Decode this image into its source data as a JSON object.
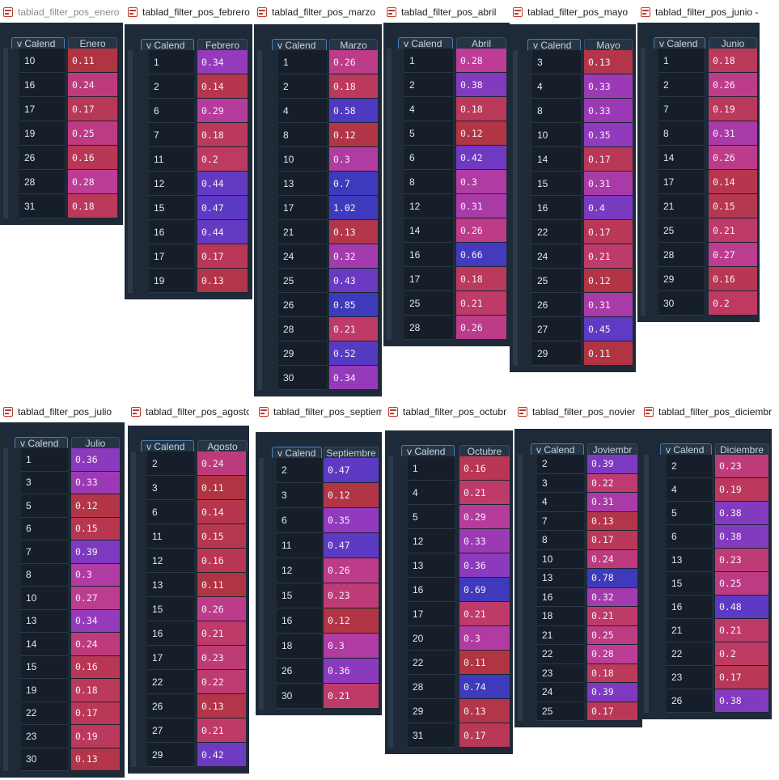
{
  "index_header": "Calend",
  "panels": [
    {
      "title": "tablad_filter_pos_enero",
      "header": "Enero",
      "rows": [
        [
          "10",
          "0.11"
        ],
        [
          "16",
          "0.24"
        ],
        [
          "17",
          "0.17"
        ],
        [
          "19",
          "0.25"
        ],
        [
          "26",
          "0.16"
        ],
        [
          "28",
          "0.28"
        ],
        [
          "31",
          "0.18"
        ]
      ]
    },
    {
      "title": "tablad_filter_pos_febrero",
      "header": "Febrero",
      "rows": [
        [
          "1",
          "0.34"
        ],
        [
          "2",
          "0.14"
        ],
        [
          "6",
          "0.29"
        ],
        [
          "7",
          "0.18"
        ],
        [
          "11",
          "0.2"
        ],
        [
          "12",
          "0.44"
        ],
        [
          "15",
          "0.47"
        ],
        [
          "16",
          "0.44"
        ],
        [
          "17",
          "0.17"
        ],
        [
          "19",
          "0.13"
        ]
      ]
    },
    {
      "title": "tablad_filter_pos_marzo",
      "header": "Marzo",
      "rows": [
        [
          "1",
          "0.26"
        ],
        [
          "2",
          "0.18"
        ],
        [
          "4",
          "0.58"
        ],
        [
          "8",
          "0.12"
        ],
        [
          "10",
          "0.3"
        ],
        [
          "13",
          "0.7"
        ],
        [
          "17",
          "1.02"
        ],
        [
          "21",
          "0.13"
        ],
        [
          "24",
          "0.32"
        ],
        [
          "25",
          "0.43"
        ],
        [
          "26",
          "0.85"
        ],
        [
          "28",
          "0.21"
        ],
        [
          "29",
          "0.52"
        ],
        [
          "30",
          "0.34"
        ]
      ]
    },
    {
      "title": "tablad_filter_pos_abril",
      "header": "Abril",
      "rows": [
        [
          "1",
          "0.28"
        ],
        [
          "2",
          "0.38"
        ],
        [
          "4",
          "0.18"
        ],
        [
          "5",
          "0.12"
        ],
        [
          "6",
          "0.42"
        ],
        [
          "8",
          "0.3"
        ],
        [
          "12",
          "0.31"
        ],
        [
          "14",
          "0.26"
        ],
        [
          "16",
          "0.66"
        ],
        [
          "17",
          "0.18"
        ],
        [
          "25",
          "0.21"
        ],
        [
          "28",
          "0.26"
        ]
      ]
    },
    {
      "title": "tablad_filter_pos_mayo",
      "header": "Mayo",
      "rows": [
        [
          "3",
          "0.13"
        ],
        [
          "4",
          "0.33"
        ],
        [
          "8",
          "0.33"
        ],
        [
          "10",
          "0.35"
        ],
        [
          "14",
          "0.17"
        ],
        [
          "15",
          "0.31"
        ],
        [
          "16",
          "0.4"
        ],
        [
          "22",
          "0.17"
        ],
        [
          "24",
          "0.21"
        ],
        [
          "25",
          "0.12"
        ],
        [
          "26",
          "0.31"
        ],
        [
          "27",
          "0.45"
        ],
        [
          "29",
          "0.11"
        ]
      ]
    },
    {
      "title": "tablad_filter_pos_junio -",
      "header": "Junio",
      "rows": [
        [
          "1",
          "0.18"
        ],
        [
          "2",
          "0.26"
        ],
        [
          "7",
          "0.19"
        ],
        [
          "8",
          "0.31"
        ],
        [
          "14",
          "0.26"
        ],
        [
          "17",
          "0.14"
        ],
        [
          "21",
          "0.15"
        ],
        [
          "25",
          "0.21"
        ],
        [
          "28",
          "0.27"
        ],
        [
          "29",
          "0.16"
        ],
        [
          "30",
          "0.2"
        ]
      ]
    },
    {
      "title": "tablad_filter_pos_julio",
      "header": "Julio",
      "rows": [
        [
          "1",
          "0.36"
        ],
        [
          "3",
          "0.33"
        ],
        [
          "5",
          "0.12"
        ],
        [
          "6",
          "0.15"
        ],
        [
          "7",
          "0.39"
        ],
        [
          "8",
          "0.3"
        ],
        [
          "10",
          "0.27"
        ],
        [
          "13",
          "0.34"
        ],
        [
          "14",
          "0.24"
        ],
        [
          "15",
          "0.16"
        ],
        [
          "19",
          "0.18"
        ],
        [
          "22",
          "0.17"
        ],
        [
          "23",
          "0.19"
        ],
        [
          "30",
          "0.13"
        ]
      ]
    },
    {
      "title": "tablad_filter_pos_agosto",
      "header": "Agosto",
      "rows": [
        [
          "2",
          "0.24"
        ],
        [
          "3",
          "0.11"
        ],
        [
          "6",
          "0.14"
        ],
        [
          "11",
          "0.15"
        ],
        [
          "12",
          "0.16"
        ],
        [
          "13",
          "0.11"
        ],
        [
          "15",
          "0.26"
        ],
        [
          "16",
          "0.21"
        ],
        [
          "17",
          "0.23"
        ],
        [
          "22",
          "0.22"
        ],
        [
          "26",
          "0.13"
        ],
        [
          "27",
          "0.21"
        ],
        [
          "29",
          "0.42"
        ]
      ]
    },
    {
      "title": "tablad_filter_pos_septiemb",
      "header": "Septiembre",
      "rows": [
        [
          "2",
          "0.47"
        ],
        [
          "3",
          "0.12"
        ],
        [
          "6",
          "0.35"
        ],
        [
          "11",
          "0.47"
        ],
        [
          "12",
          "0.26"
        ],
        [
          "15",
          "0.23"
        ],
        [
          "16",
          "0.12"
        ],
        [
          "18",
          "0.3"
        ],
        [
          "26",
          "0.36"
        ],
        [
          "30",
          "0.21"
        ]
      ]
    },
    {
      "title": "tablad_filter_pos_octubr",
      "header": "Octubre",
      "rows": [
        [
          "1",
          "0.16"
        ],
        [
          "4",
          "0.21"
        ],
        [
          "5",
          "0.29"
        ],
        [
          "12",
          "0.33"
        ],
        [
          "13",
          "0.36"
        ],
        [
          "16",
          "0.69"
        ],
        [
          "17",
          "0.21"
        ],
        [
          "20",
          "0.3"
        ],
        [
          "22",
          "0.11"
        ],
        [
          "28",
          "0.74"
        ],
        [
          "29",
          "0.13"
        ],
        [
          "31",
          "0.17"
        ]
      ]
    },
    {
      "title": "tablad_filter_pos_novier",
      "header": "Joviembr",
      "rows": [
        [
          "2",
          "0.39"
        ],
        [
          "3",
          "0.22"
        ],
        [
          "4",
          "0.31"
        ],
        [
          "7",
          "0.13"
        ],
        [
          "8",
          "0.17"
        ],
        [
          "10",
          "0.24"
        ],
        [
          "13",
          "0.78"
        ],
        [
          "16",
          "0.32"
        ],
        [
          "18",
          "0.21"
        ],
        [
          "21",
          "0.25"
        ],
        [
          "22",
          "0.28"
        ],
        [
          "23",
          "0.18"
        ],
        [
          "24",
          "0.39"
        ],
        [
          "25",
          "0.17"
        ]
      ]
    },
    {
      "title": "tablad_filter_pos_diciembr",
      "header": "Diciembre",
      "rows": [
        [
          "2",
          "0.23"
        ],
        [
          "4",
          "0.19"
        ],
        [
          "5",
          "0.38"
        ],
        [
          "6",
          "0.38"
        ],
        [
          "13",
          "0.23"
        ],
        [
          "15",
          "0.25"
        ],
        [
          "16",
          "0.48"
        ],
        [
          "21",
          "0.21"
        ],
        [
          "22",
          "0.2"
        ],
        [
          "23",
          "0.17"
        ],
        [
          "26",
          "0.38"
        ]
      ]
    }
  ]
}
